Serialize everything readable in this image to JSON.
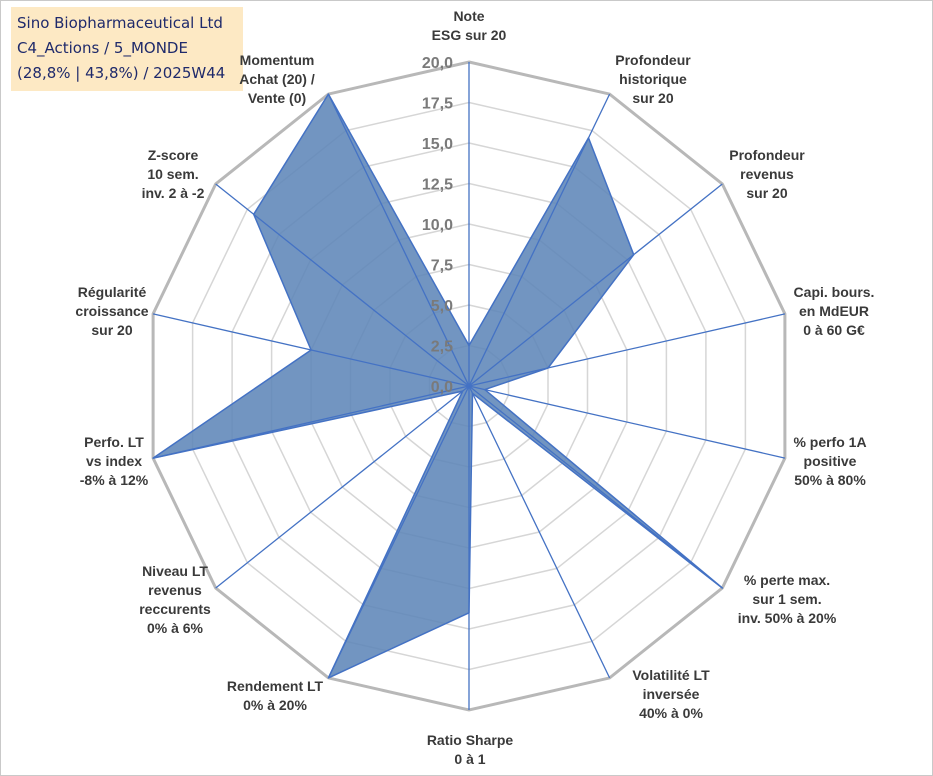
{
  "header": {
    "line1": "Sino Biopharmaceutical Ltd",
    "line2": "C4_Actions / 5_MONDE",
    "line3": "(28,8% | 43,8%) / 2025W44"
  },
  "colors": {
    "fill": "#5f86b8",
    "stroke": "#4472c4",
    "grid_outer": "#b8b8b8",
    "grid_inner": "#d6d6d6",
    "title_bg": "#fde9c4"
  },
  "chart_data": {
    "type": "radar",
    "rmin": 0,
    "rmax": 20,
    "tick_labels": [
      "0,0",
      "2,5",
      "5,0",
      "7,5",
      "10,0",
      "12,5",
      "15,0",
      "17,5",
      "20,0"
    ],
    "axes": [
      {
        "label": [
          "Note",
          "ESG sur 20"
        ],
        "value": 2.5
      },
      {
        "label": [
          "Profondeur",
          "historique",
          "sur 20"
        ],
        "value": 17.0
      },
      {
        "label": [
          "Profondeur",
          "revenus",
          "sur 20"
        ],
        "value": 13.0
      },
      {
        "label": [
          "Capi. bours.",
          "en MdEUR",
          "0 à 60 G€"
        ],
        "value": 5.0
      },
      {
        "label": [
          "% perfo 1A",
          "positive",
          "50% à 80%"
        ],
        "value": 1.0
      },
      {
        "label": [
          "% perte max.",
          "sur 1 sem.",
          "inv. 50% à 20%"
        ],
        "value": 20.0
      },
      {
        "label": [
          "Volatilité LT",
          "inversée",
          "40% à 0%"
        ],
        "value": 0.5
      },
      {
        "label": [
          "Ratio Sharpe",
          "0 à 1"
        ],
        "value": 14.0
      },
      {
        "label": [
          "Rendement LT",
          "0% à 20%"
        ],
        "value": 20.0
      },
      {
        "label": [
          "Niveau LT",
          "revenus",
          "reccurents",
          "0% à 6%"
        ],
        "value": 0.5
      },
      {
        "label": [
          "Perfo. LT",
          "vs index",
          "-8% à 12%"
        ],
        "value": 20.0
      },
      {
        "label": [
          "Régularité",
          "croissance",
          "sur 20"
        ],
        "value": 10.0
      },
      {
        "label": [
          "Z-score",
          "10 sem.",
          "inv. 2 à -2"
        ],
        "value": 17.0
      },
      {
        "label": [
          "Momentum",
          "Achat (20) /",
          "Vente (0)"
        ],
        "value": 20.0
      }
    ]
  }
}
